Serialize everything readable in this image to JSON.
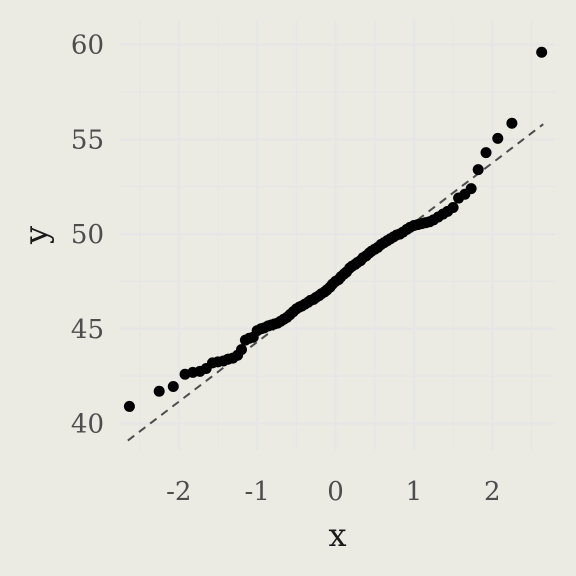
{
  "chart_data": {
    "type": "scatter",
    "subtype": "qq-plot",
    "xlabel": "x",
    "ylabel": "y",
    "xlim": [
      -2.75,
      2.8
    ],
    "ylim": [
      38.6,
      61.3
    ],
    "x_ticks": [
      "-2",
      "-1",
      "0",
      "1",
      "2"
    ],
    "y_ticks": [
      "40",
      "45",
      "50",
      "55",
      "60"
    ],
    "grid": true,
    "background_color": "#ebebe3",
    "grid_color": "#e6e6e6",
    "point_color": "#000000",
    "reference_line": {
      "style": "dashed",
      "color": "#4d4d4d",
      "x": [
        -2.65,
        2.65
      ],
      "y": [
        39.1,
        55.8
      ]
    },
    "points": [
      [
        -2.63,
        40.9
      ],
      [
        -2.25,
        41.7
      ],
      [
        -2.07,
        41.95
      ],
      [
        -1.92,
        42.6
      ],
      [
        -1.82,
        42.7
      ],
      [
        -1.73,
        42.75
      ],
      [
        -1.65,
        42.9
      ],
      [
        -1.57,
        43.2
      ],
      [
        -1.5,
        43.25
      ],
      [
        -1.43,
        43.3
      ],
      [
        -1.37,
        43.4
      ],
      [
        -1.31,
        43.45
      ],
      [
        -1.25,
        43.6
      ],
      [
        -1.2,
        43.9
      ],
      [
        -1.15,
        44.4
      ],
      [
        -1.1,
        44.5
      ],
      [
        -1.05,
        44.55
      ],
      [
        -1.0,
        44.9
      ],
      [
        -0.95,
        45.0
      ],
      [
        -0.91,
        45.05
      ],
      [
        -0.86,
        45.15
      ],
      [
        -0.82,
        45.2
      ],
      [
        -0.78,
        45.25
      ],
      [
        -0.74,
        45.3
      ],
      [
        -0.7,
        45.4
      ],
      [
        -0.66,
        45.5
      ],
      [
        -0.62,
        45.6
      ],
      [
        -0.58,
        45.75
      ],
      [
        -0.54,
        45.9
      ],
      [
        -0.5,
        46.05
      ],
      [
        -0.46,
        46.15
      ],
      [
        -0.43,
        46.2
      ],
      [
        -0.39,
        46.3
      ],
      [
        -0.35,
        46.4
      ],
      [
        -0.32,
        46.5
      ],
      [
        -0.28,
        46.55
      ],
      [
        -0.25,
        46.65
      ],
      [
        -0.21,
        46.75
      ],
      [
        -0.18,
        46.85
      ],
      [
        -0.14,
        46.95
      ],
      [
        -0.11,
        47.05
      ],
      [
        -0.07,
        47.2
      ],
      [
        -0.04,
        47.35
      ],
      [
        0.0,
        47.5
      ],
      [
        0.04,
        47.6
      ],
      [
        0.07,
        47.75
      ],
      [
        0.11,
        47.9
      ],
      [
        0.14,
        48.0
      ],
      [
        0.18,
        48.2
      ],
      [
        0.21,
        48.3
      ],
      [
        0.25,
        48.4
      ],
      [
        0.28,
        48.5
      ],
      [
        0.32,
        48.6
      ],
      [
        0.35,
        48.75
      ],
      [
        0.39,
        48.85
      ],
      [
        0.43,
        49.0
      ],
      [
        0.46,
        49.1
      ],
      [
        0.5,
        49.2
      ],
      [
        0.54,
        49.3
      ],
      [
        0.58,
        49.45
      ],
      [
        0.62,
        49.55
      ],
      [
        0.66,
        49.65
      ],
      [
        0.7,
        49.75
      ],
      [
        0.74,
        49.85
      ],
      [
        0.78,
        49.95
      ],
      [
        0.82,
        50.0
      ],
      [
        0.86,
        50.1
      ],
      [
        0.91,
        50.25
      ],
      [
        0.95,
        50.35
      ],
      [
        1.0,
        50.45
      ],
      [
        1.05,
        50.5
      ],
      [
        1.1,
        50.55
      ],
      [
        1.15,
        50.6
      ],
      [
        1.2,
        50.65
      ],
      [
        1.25,
        50.75
      ],
      [
        1.31,
        50.9
      ],
      [
        1.37,
        51.05
      ],
      [
        1.43,
        51.2
      ],
      [
        1.5,
        51.4
      ],
      [
        1.57,
        51.9
      ],
      [
        1.65,
        52.1
      ],
      [
        1.73,
        52.4
      ],
      [
        1.82,
        53.4
      ],
      [
        1.92,
        54.3
      ],
      [
        2.07,
        55.05
      ],
      [
        2.25,
        55.85
      ],
      [
        2.63,
        59.6
      ]
    ]
  }
}
